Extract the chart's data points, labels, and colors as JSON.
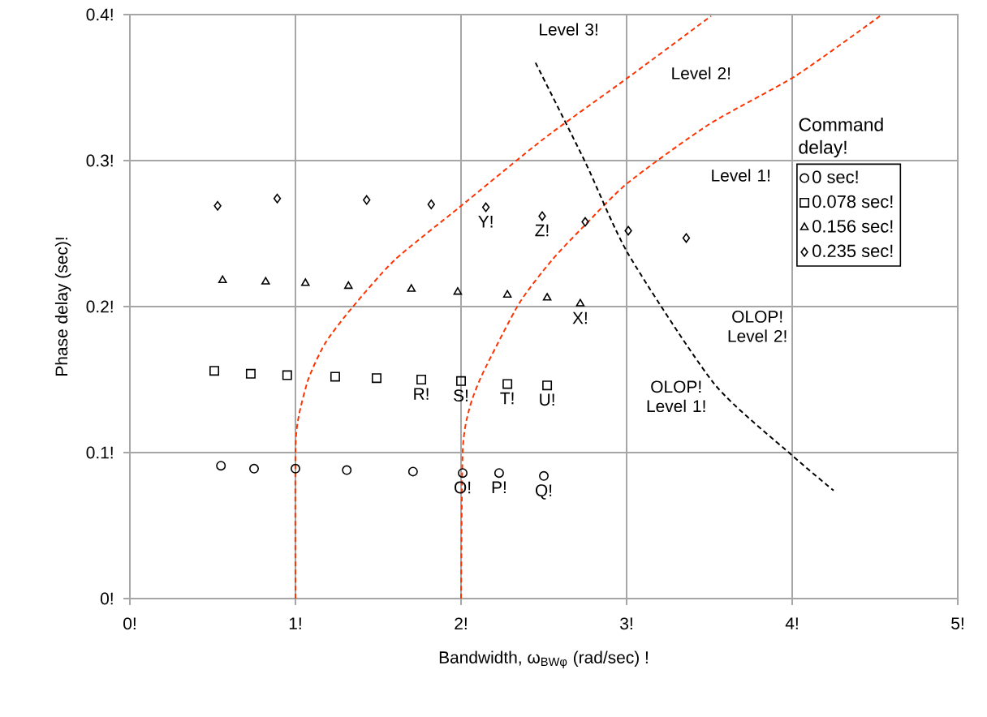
{
  "chart_data": {
    "type": "scatter",
    "xlabel": "Bandwidth, ω$_{BWφ}$ (rad/sec) !",
    "ylabel": "Phase delay (sec)!",
    "legend_title": "Command delay!",
    "xlim": [
      0,
      5
    ],
    "ylim": [
      0,
      0.4
    ],
    "xticks": [
      {
        "value": 0,
        "label": "0!"
      },
      {
        "value": 1,
        "label": "1!"
      },
      {
        "value": 2,
        "label": "2!"
      },
      {
        "value": 3,
        "label": "3!"
      },
      {
        "value": 4,
        "label": "4!"
      },
      {
        "value": 5,
        "label": "5!"
      }
    ],
    "yticks": [
      {
        "value": 0,
        "label": "0!"
      },
      {
        "value": 0.1,
        "label": "0.1!"
      },
      {
        "value": 0.2,
        "label": "0.2!"
      },
      {
        "value": 0.3,
        "label": "0.3!"
      },
      {
        "value": 0.4,
        "label": "0.4!"
      }
    ],
    "grid": true,
    "legend": "right",
    "series": [
      {
        "name": "0 sec!",
        "color": "#000000",
        "marker": "circle",
        "x": [
          0.55,
          0.75,
          1.0,
          1.31,
          1.71,
          2.01,
          2.23,
          2.5
        ],
        "values": [
          0.091,
          0.089,
          0.089,
          0.088,
          0.087,
          0.086,
          0.086,
          0.084
        ]
      },
      {
        "name": "0.078 sec!",
        "color": "#000000",
        "marker": "square",
        "x": [
          0.51,
          0.73,
          0.95,
          1.24,
          1.49,
          1.76,
          2.0,
          2.28,
          2.52
        ],
        "values": [
          0.156,
          0.154,
          0.153,
          0.152,
          0.151,
          0.15,
          0.149,
          0.147,
          0.146
        ]
      },
      {
        "name": "0.156 sec!",
        "color": "#000000",
        "marker": "triangle",
        "x": [
          0.56,
          0.82,
          1.06,
          1.32,
          1.7,
          1.98,
          2.28,
          2.52,
          2.72
        ],
        "values": [
          0.218,
          0.217,
          0.216,
          0.214,
          0.212,
          0.21,
          0.208,
          0.206,
          0.202
        ]
      },
      {
        "name": "0.235 sec!",
        "color": "#000000",
        "marker": "diamond",
        "x": [
          0.53,
          0.89,
          1.43,
          1.82,
          2.15,
          2.49,
          2.75,
          3.01,
          3.36
        ],
        "values": [
          0.269,
          0.274,
          0.273,
          0.27,
          0.268,
          0.262,
          0.258,
          0.252,
          0.247
        ]
      },
      {
        "type": "line",
        "color": "#ff3300",
        "line_style": "dashed",
        "x": [
          1.0,
          1.0,
          1.02,
          1.08,
          1.18,
          1.34,
          1.6,
          1.99,
          2.5,
          3.01,
          3.51
        ],
        "values": [
          0,
          0.101,
          0.125,
          0.151,
          0.175,
          0.199,
          0.232,
          0.268,
          0.315,
          0.357,
          0.399
        ]
      },
      {
        "type": "line",
        "color": "#ff3300",
        "line_style": "dashed",
        "x": [
          2.0,
          2.01,
          2.05,
          2.13,
          2.35,
          2.55,
          2.75,
          3.01,
          3.5,
          4.02,
          4.53
        ],
        "values": [
          0,
          0.101,
          0.13,
          0.154,
          0.202,
          0.232,
          0.256,
          0.285,
          0.325,
          0.358,
          0.399
        ]
      },
      {
        "type": "line",
        "color": "#000000",
        "line_style": "dashed",
        "x": [
          2.45,
          2.75,
          3.01,
          3.53,
          3.99,
          4.25
        ],
        "values": [
          0.367,
          0.299,
          0.236,
          0.147,
          0.099,
          0.074
        ]
      }
    ],
    "annotations": [
      "Level 3!",
      "Level 2!",
      "Level 1!",
      "OLOP! Level 2!",
      "OLOP! Level 1!",
      {
        "text": "O!",
        "x": 2.01,
        "y": 0.086
      },
      {
        "text": "P!",
        "x": 2.23,
        "y": 0.086
      },
      {
        "text": "Q!",
        "x": 2.5,
        "y": 0.084
      },
      {
        "text": "R!",
        "x": 1.76,
        "y": 0.15
      },
      {
        "text": "S!",
        "x": 2.0,
        "y": 0.149
      },
      {
        "text": "T!",
        "x": 2.28,
        "y": 0.147
      },
      {
        "text": "U!",
        "x": 2.52,
        "y": 0.146
      },
      {
        "text": "X!",
        "x": 2.72,
        "y": 0.202
      },
      {
        "text": "Y!",
        "x": 2.15,
        "y": 0.268
      },
      {
        "text": "Z!",
        "x": 2.49,
        "y": 0.262
      }
    ]
  }
}
